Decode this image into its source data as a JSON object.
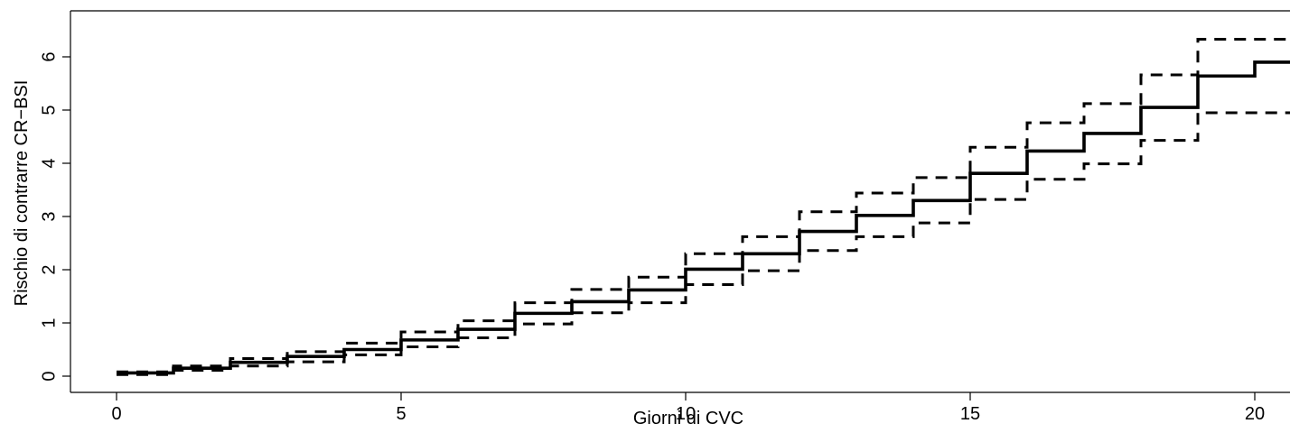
{
  "chart_data": {
    "type": "line",
    "title": "",
    "xlabel": "Giorni di CVC",
    "ylabel": "Rischio di contrarre CR−BSI",
    "xlim": [
      -0.8,
      20.7
    ],
    "ylim": [
      -0.2,
      6.5
    ],
    "x_ticks": [
      0,
      5,
      10,
      15,
      20
    ],
    "x_tick_labels": [
      "0",
      "5",
      "10",
      "15",
      "20"
    ],
    "y_ticks": [
      0,
      1,
      2,
      3,
      4,
      5,
      6
    ],
    "y_tick_labels": [
      "0",
      "1",
      "2",
      "3",
      "4",
      "5",
      "6"
    ],
    "grid": false,
    "legend": "none",
    "line_color": "#000000",
    "step_x": [
      0,
      1,
      2,
      3,
      4,
      5,
      6,
      7,
      8,
      9,
      10,
      11,
      12,
      13,
      14,
      15,
      16,
      17,
      18,
      19,
      20,
      20.7
    ],
    "series": [
      {
        "style": "solid",
        "values": [
          0.06,
          0.15,
          0.26,
          0.37,
          0.5,
          0.68,
          0.88,
          1.18,
          1.4,
          1.62,
          2.01,
          2.3,
          2.72,
          3.02,
          3.3,
          3.81,
          4.23,
          4.56,
          5.05,
          5.64,
          5.9,
          5.9
        ]
      },
      {
        "style": "dashed",
        "values": [
          0.08,
          0.19,
          0.33,
          0.46,
          0.62,
          0.83,
          1.04,
          1.38,
          1.63,
          1.86,
          2.3,
          2.62,
          3.09,
          3.44,
          3.73,
          4.3,
          4.76,
          5.12,
          5.66,
          6.33,
          6.33,
          6.33
        ]
      },
      {
        "style": "dashed",
        "values": [
          0.03,
          0.11,
          0.19,
          0.27,
          0.4,
          0.55,
          0.72,
          0.98,
          1.19,
          1.38,
          1.72,
          1.98,
          2.36,
          2.62,
          2.88,
          3.32,
          3.7,
          3.99,
          4.43,
          4.95,
          4.95,
          4.95
        ]
      }
    ]
  }
}
